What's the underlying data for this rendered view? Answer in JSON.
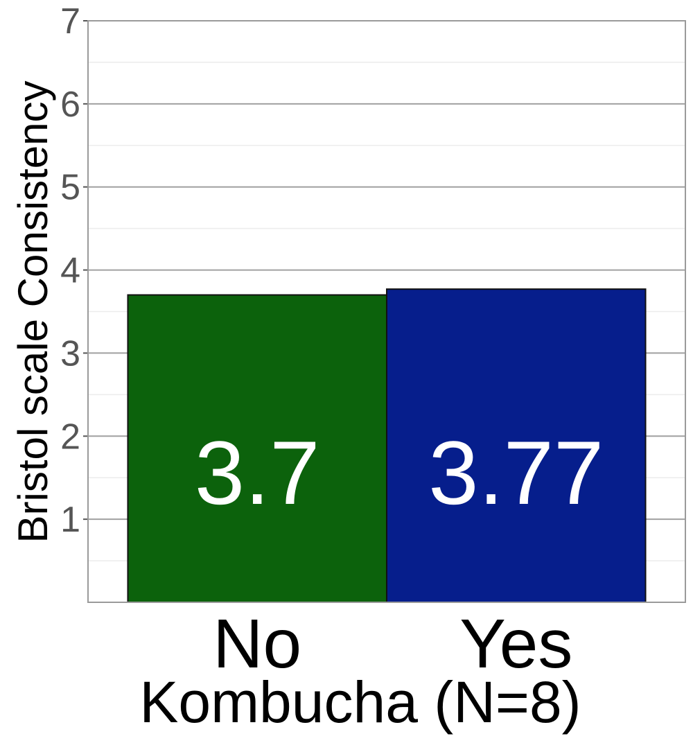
{
  "chart_data": {
    "type": "bar",
    "categories": [
      "No",
      "Yes"
    ],
    "values": [
      3.7,
      3.77
    ],
    "value_labels": [
      "3.7",
      "3.77"
    ],
    "colors": [
      "#0c620c",
      "#061e8c"
    ],
    "xlabel": "Kombucha (N=8)",
    "ylabel": "Bristol scale Consistency",
    "ylim": [
      0,
      7
    ],
    "yticks": [
      1,
      2,
      3,
      4,
      5,
      6,
      7
    ],
    "grid": true,
    "legend": "none"
  }
}
